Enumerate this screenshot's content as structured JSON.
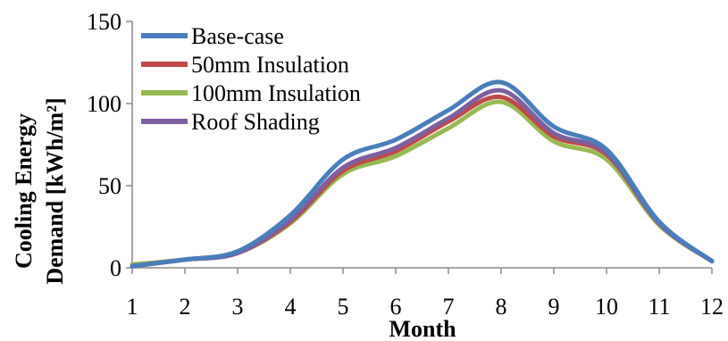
{
  "chart_data": {
    "type": "line",
    "xlabel": "Month",
    "ylabel_lines": [
      "Cooling Energy",
      "Demand [kWh/m²]"
    ],
    "x": [
      1,
      2,
      3,
      4,
      5,
      6,
      7,
      8,
      9,
      10,
      11,
      12
    ],
    "xlim": [
      1,
      12
    ],
    "ylim": [
      0,
      150
    ],
    "y_ticks": [
      0,
      50,
      100,
      150
    ],
    "grid": false,
    "legend_position": "top-left",
    "series": [
      {
        "name": "Base-case",
        "color": "#4a7ebb",
        "values": [
          1,
          5,
          10,
          32,
          66,
          78,
          96,
          113,
          86,
          72,
          28,
          4
        ]
      },
      {
        "name": "50mm Insulation",
        "color": "#be4b48",
        "values": [
          1,
          5,
          9,
          28,
          59,
          71,
          89,
          104,
          80,
          69,
          27,
          4
        ]
      },
      {
        "name": "100mm Insulation",
        "color": "#98b954",
        "values": [
          2,
          5,
          9,
          27,
          57,
          68,
          85,
          101,
          77,
          66,
          26,
          4
        ]
      },
      {
        "name": "Roof Shading",
        "color": "#7d60a0",
        "values": [
          1,
          5,
          9,
          29,
          61,
          73,
          91,
          108,
          82,
          70,
          27,
          4
        ]
      }
    ]
  }
}
